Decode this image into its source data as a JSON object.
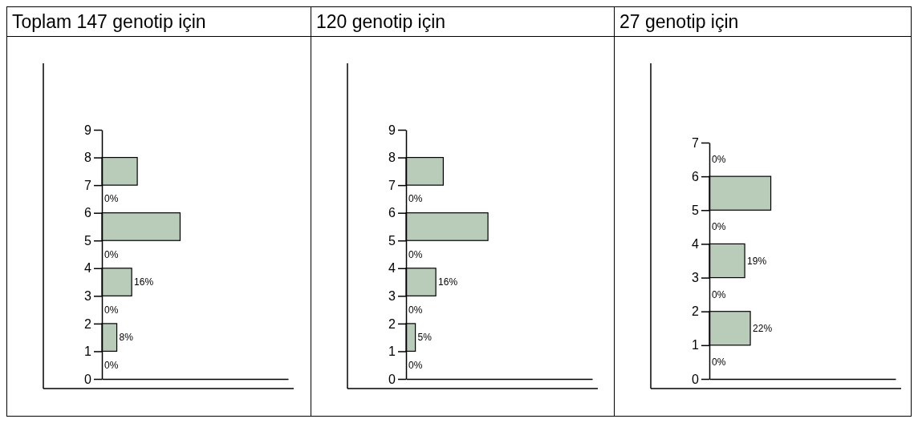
{
  "chart_data": [
    {
      "type": "bar",
      "orientation": "horizontal",
      "title": "Toplam 147 genotip için",
      "x": [
        0.5,
        1.5,
        2.5,
        3.5,
        4.5,
        5.5,
        6.5,
        7.5
      ],
      "values": [
        0,
        8,
        0,
        16,
        0,
        42,
        0,
        19
      ],
      "value_labels": [
        "0%",
        "8%",
        "0%",
        "16%",
        "0%",
        null,
        "0%",
        null
      ],
      "color": "#b9cbb9",
      "xlim": [
        0,
        100
      ],
      "ylim": [
        0,
        9
      ],
      "yticks": [
        0,
        1,
        2,
        3,
        4,
        5,
        6,
        7,
        8,
        9
      ],
      "tick_labels": "y"
    },
    {
      "type": "bar",
      "orientation": "horizontal",
      "title": "120 genotip için",
      "x": [
        0.5,
        1.5,
        2.5,
        3.5,
        4.5,
        5.5,
        6.5,
        7.5
      ],
      "values": [
        0,
        5,
        0,
        16,
        0,
        44,
        0,
        20
      ],
      "value_labels": [
        "0%",
        "5%",
        "0%",
        "16%",
        "0%",
        null,
        "0%",
        null
      ],
      "color": "#b9cbb9",
      "xlim": [
        0,
        100
      ],
      "ylim": [
        0,
        9
      ],
      "yticks": [
        0,
        1,
        2,
        3,
        4,
        5,
        6,
        7,
        8,
        9
      ],
      "tick_labels": "y"
    },
    {
      "type": "bar",
      "orientation": "horizontal",
      "title": "27 genotip için",
      "x": [
        0.5,
        1.5,
        2.5,
        3.5,
        4.5,
        5.5,
        6.5
      ],
      "values": [
        0,
        22,
        0,
        19,
        0,
        33,
        0
      ],
      "value_labels": [
        "0%",
        "22%",
        "0%",
        "19%",
        "0%",
        null,
        "0%"
      ],
      "color": "#b9cbb9",
      "xlim": [
        0,
        100
      ],
      "ylim": [
        0,
        7
      ],
      "yticks": [
        0,
        1,
        2,
        3,
        4,
        5,
        6,
        7
      ],
      "tick_labels": "y"
    }
  ]
}
